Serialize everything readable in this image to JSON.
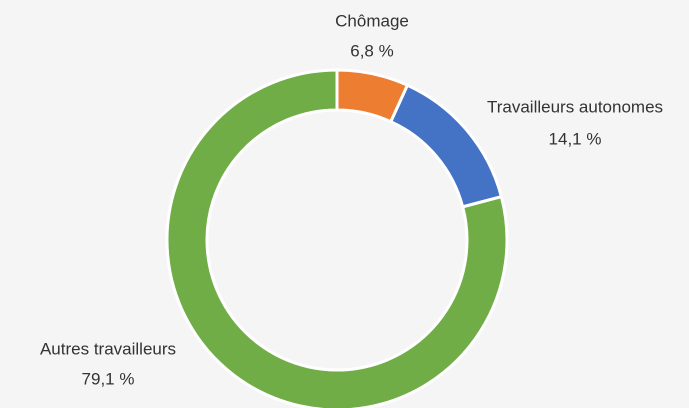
{
  "chart_data": {
    "type": "donut",
    "categories": [
      "Chômage",
      "Travailleurs autonomes",
      "Autres travailleurs"
    ],
    "values": [
      6.8,
      14.1,
      79.1
    ],
    "value_labels": [
      "6,8 %",
      "14,1 %",
      "79,1 %"
    ],
    "colors": [
      "#ed7d31",
      "#4472c4",
      "#70ad47"
    ]
  }
}
